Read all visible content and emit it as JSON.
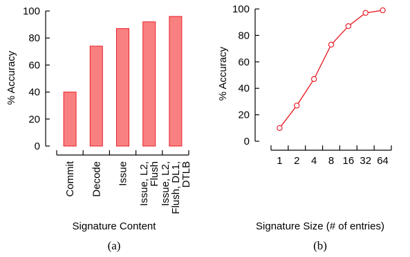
{
  "chart_data": [
    {
      "type": "bar",
      "caption": "(a)",
      "categories": [
        [
          "Commit"
        ],
        [
          "Decode"
        ],
        [
          "Issue"
        ],
        [
          "Issue, L2,",
          "Flush"
        ],
        [
          "Issue, L2,",
          "Flush, DL1,",
          "DTLB"
        ]
      ],
      "values": [
        40,
        74,
        87,
        92,
        96
      ],
      "xlabel": "Signature Content",
      "ylabel": "% Accuracy",
      "ylim": [
        0,
        100
      ],
      "yticks": [
        0,
        20,
        40,
        60,
        80,
        100
      ],
      "grid": false,
      "colors": {
        "bar_fill": "#f98080",
        "bar_stroke": "#e8202a"
      }
    },
    {
      "type": "line",
      "caption": "(b)",
      "x": [
        "1",
        "2",
        "4",
        "8",
        "16",
        "32",
        "64"
      ],
      "y": [
        10,
        27,
        47,
        73,
        87,
        97,
        99
      ],
      "xlabel": "Signature Size (# of entries)",
      "ylabel": "% Accuracy",
      "ylim": [
        0,
        100
      ],
      "yticks": [
        0,
        20,
        40,
        60,
        80,
        100
      ],
      "grid": false,
      "colors": {
        "line": "#e8202a",
        "marker_fill": "#ffffff"
      }
    }
  ]
}
